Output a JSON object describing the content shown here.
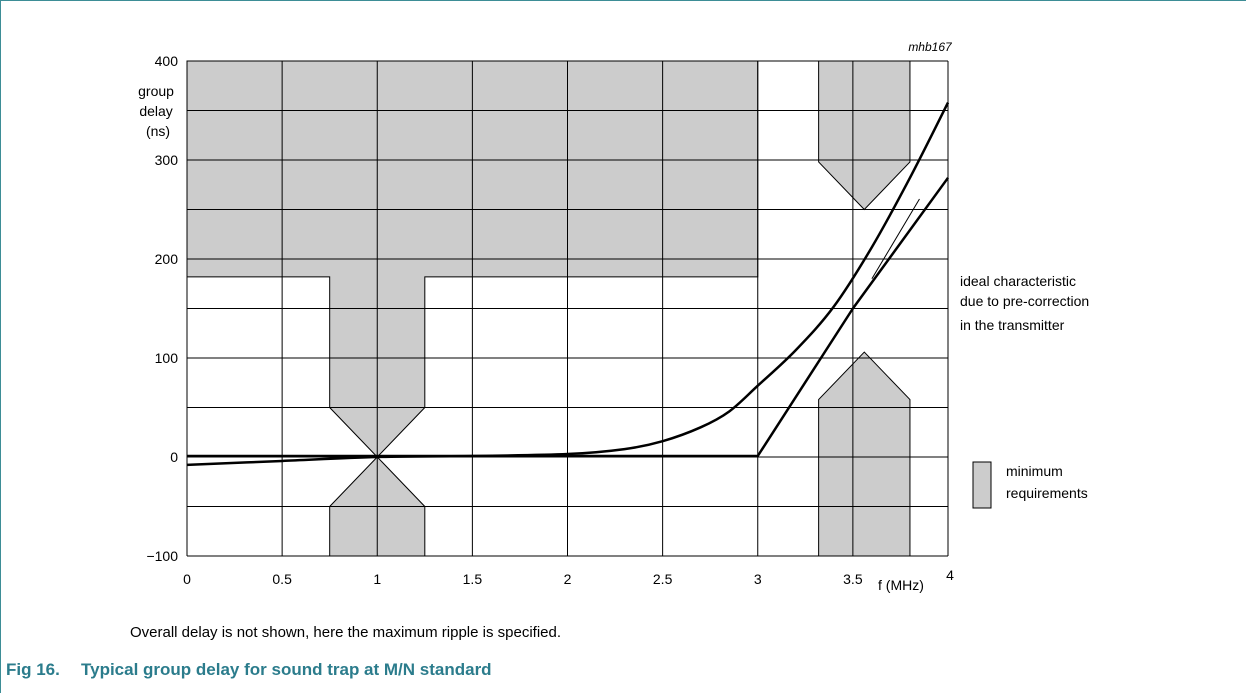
{
  "figure_code": "mhb167",
  "note": "Overall delay is not shown, here the maximum ripple is specified.",
  "caption": {
    "number": "Fig 16.",
    "title": "Typical group delay for sound trap at M/N standard"
  },
  "annotation": [
    "ideal characteristic",
    "due to pre-correction",
    "in the transmitter"
  ],
  "legend": {
    "label_lines": [
      "minimum",
      "requirements"
    ],
    "fill": "#cccccc"
  },
  "chart_data": {
    "type": "line",
    "title": "",
    "xlabel": "f (MHz)",
    "ylabel_lines": [
      "group",
      "delay",
      "(ns)"
    ],
    "xlim": [
      0,
      4
    ],
    "ylim": [
      -100,
      400
    ],
    "x_ticks": [
      0,
      0.5,
      1,
      1.5,
      2,
      2.5,
      3,
      3.5,
      4
    ],
    "x_tick_labels": [
      "0",
      "0.5",
      "1",
      "1.5",
      "2",
      "2.5",
      "3",
      "3.5",
      "4"
    ],
    "y_ticks": [
      -100,
      0,
      100,
      200,
      300,
      400
    ],
    "y_tick_labels": [
      "−100",
      "0",
      "100",
      "200",
      "300",
      "400"
    ],
    "x_grid_step": 0.5,
    "y_grid_step": 50,
    "grid": true,
    "series": [
      {
        "x": [
          0,
          0.5,
          1,
          1.5,
          2,
          2.3,
          2.5,
          2.7,
          2.85,
          3.0,
          3.2,
          3.4,
          3.6,
          3.8,
          4.0
        ],
        "y": [
          -8,
          -4,
          0,
          1,
          3,
          8,
          16,
          30,
          46,
          72,
          108,
          152,
          212,
          282,
          358
        ]
      },
      {
        "x": [
          0,
          1,
          2,
          3,
          3.5,
          4
        ],
        "y": [
          1,
          1,
          1,
          1,
          150,
          282
        ]
      }
    ],
    "regions": [
      {
        "points": [
          [
            0,
            400
          ],
          [
            3,
            400
          ],
          [
            3,
            182
          ],
          [
            1.25,
            182
          ],
          [
            1.25,
            50
          ],
          [
            1,
            0
          ],
          [
            0.75,
            50
          ],
          [
            0.75,
            182
          ],
          [
            0,
            182
          ]
        ]
      },
      {
        "points": [
          [
            0.75,
            -100
          ],
          [
            1.25,
            -100
          ],
          [
            1.25,
            -50
          ],
          [
            1,
            0
          ],
          [
            0.75,
            -50
          ]
        ]
      },
      {
        "points": [
          [
            3.32,
            400
          ],
          [
            3.8,
            400
          ],
          [
            3.8,
            298
          ],
          [
            3.56,
            250
          ],
          [
            3.32,
            298
          ]
        ]
      },
      {
        "points": [
          [
            3.32,
            -100
          ],
          [
            3.8,
            -100
          ],
          [
            3.8,
            58
          ],
          [
            3.56,
            106
          ],
          [
            3.32,
            58
          ]
        ]
      }
    ],
    "annotation_pointer": [
      [
        3.6,
        180
      ],
      [
        3.85,
        200
      ]
    ]
  }
}
